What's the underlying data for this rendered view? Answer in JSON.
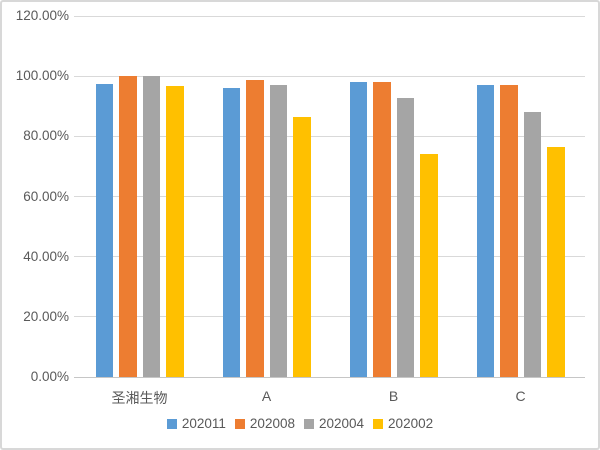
{
  "chart_data": {
    "type": "bar",
    "categories": [
      "圣湘生物",
      "A",
      "B",
      "C"
    ],
    "series": [
      {
        "name": "202011",
        "color": "#5B9BD5",
        "values": [
          97.3,
          96.2,
          97.9,
          96.9
        ]
      },
      {
        "name": "202008",
        "color": "#ED7D31",
        "values": [
          100.0,
          98.8,
          97.9,
          96.9
        ]
      },
      {
        "name": "202004",
        "color": "#A5A5A5",
        "values": [
          100.0,
          97.1,
          92.6,
          88.0
        ]
      },
      {
        "name": "202002",
        "color": "#FFC000",
        "values": [
          96.8,
          86.5,
          74.0,
          76.5
        ]
      }
    ],
    "title": "",
    "xlabel": "",
    "ylabel": "",
    "ylim": [
      0,
      120
    ],
    "ytick_step": 20,
    "yticks": [
      "0.00%",
      "20.00%",
      "40.00%",
      "60.00%",
      "80.00%",
      "100.00%",
      "120.00%"
    ],
    "grid": true,
    "legend_position": "bottom",
    "colors": {
      "gridline": "#D9D9D9",
      "axis_line": "#C6C6C6",
      "axis_text": "#595959",
      "background": "#FFFFFF",
      "frame_border": "#D8D8D8"
    }
  }
}
